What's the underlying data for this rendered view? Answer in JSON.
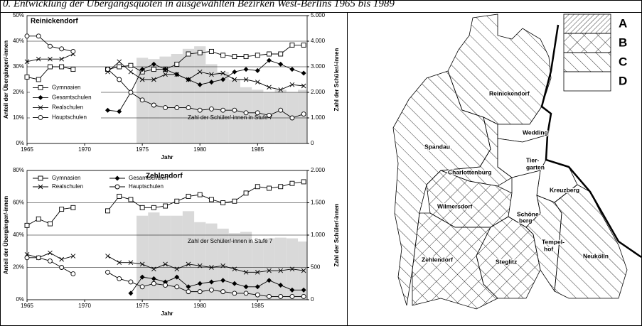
{
  "figure_title": "0. Entwicklung der Übergangsquoten in ausgewählten Bezirken West-Berlins 1965 bis 1989",
  "chart_data": [
    {
      "type": "line",
      "title": "Reinickendorf",
      "title_position": "left",
      "legend": "center-left",
      "xlabel": "Jahr",
      "ylabel": "Anteil der Übergänger/-innen",
      "y2label": "Zahl der Schüler/-innen",
      "x": [
        1965,
        1966,
        1967,
        1968,
        1969,
        1970,
        1971,
        1972,
        1973,
        1974,
        1975,
        1976,
        1977,
        1978,
        1979,
        1980,
        1981,
        1982,
        1983,
        1984,
        1985,
        1986,
        1987,
        1988,
        1989
      ],
      "xlim": [
        1965,
        1989.3
      ],
      "xticks": [
        1965,
        1970,
        1975,
        1980,
        1985
      ],
      "ylim": [
        0,
        50
      ],
      "yticks": [
        {
          "value": 0,
          "label": "0%"
        },
        {
          "value": 10,
          "label": "10%"
        },
        {
          "value": 20,
          "label": "20%"
        },
        {
          "value": 30,
          "label": "30%"
        },
        {
          "value": 40,
          "label": "40%"
        },
        {
          "value": 50,
          "label": "50%"
        }
      ],
      "y2lim": [
        0,
        5000
      ],
      "y2ticks": [
        0,
        {
          "value": 1000,
          "label": "1.000"
        },
        {
          "value": 2000,
          "label": "2.000"
        },
        {
          "value": 3000,
          "label": "3.000"
        },
        {
          "value": 4000,
          "label": "4.000"
        },
        {
          "value": 5000,
          "label": "5.000"
        }
      ],
      "grid": true,
      "series": [
        {
          "name": "Zahl der Schüler/-innen in Stufe 7",
          "type": "area",
          "axis": "y2",
          "color": "#d9d9d9",
          "values": [
            null,
            null,
            null,
            null,
            null,
            null,
            null,
            null,
            null,
            null,
            3350,
            3300,
            3400,
            3500,
            3700,
            3800,
            3100,
            2800,
            2500,
            2200,
            2100,
            2000,
            2100,
            2000,
            2100
          ]
        },
        {
          "name": "Gymnasien",
          "marker": "square",
          "color": "#000000",
          "values": [
            26,
            25,
            30,
            30,
            29,
            null,
            null,
            29,
            30,
            30.5,
            28,
            29,
            29,
            31,
            35,
            35.5,
            36,
            34.5,
            34,
            34,
            34.5,
            35,
            35,
            38.5,
            38.5
          ]
        },
        {
          "name": "Gesamtschulen",
          "marker": "diamond",
          "color": "#000000",
          "values": [
            null,
            null,
            null,
            null,
            null,
            null,
            null,
            13,
            12.5,
            20,
            29,
            31,
            29,
            27,
            25,
            23,
            24,
            25,
            28,
            29,
            28.5,
            32.5,
            31,
            29,
            27.5
          ]
        },
        {
          "name": "Realschulen",
          "marker": "x",
          "color": "#000000",
          "values": [
            32,
            33,
            33,
            33,
            35,
            null,
            null,
            28,
            32,
            28,
            25,
            25,
            27,
            27,
            25,
            28,
            27,
            27.5,
            25,
            25,
            24,
            22,
            21,
            23,
            22.5
          ]
        },
        {
          "name": "Hauptschulen",
          "marker": "circle",
          "color": "#000000",
          "values": [
            42,
            42,
            38,
            37,
            36,
            null,
            null,
            29,
            25,
            20,
            17,
            15,
            14,
            14,
            14,
            13,
            13.5,
            13,
            13,
            12,
            12,
            11,
            13,
            10,
            11.5
          ]
        }
      ]
    },
    {
      "type": "line",
      "title": "Zehlendorf",
      "title_position": "center",
      "legend": "top-left",
      "xlabel": "Jahr",
      "ylabel": "Anteil der Übergänger/-innen",
      "y2label": "Zahl der Schüler/-innen",
      "x": [
        1965,
        1966,
        1967,
        1968,
        1969,
        1970,
        1971,
        1972,
        1973,
        1974,
        1975,
        1976,
        1977,
        1978,
        1979,
        1980,
        1981,
        1982,
        1983,
        1984,
        1985,
        1986,
        1987,
        1988,
        1989
      ],
      "xlim": [
        1965,
        1989.3
      ],
      "xticks": [
        1965,
        1970,
        1975,
        1980,
        1985
      ],
      "ylim": [
        0,
        80
      ],
      "yticks": [
        {
          "value": 0,
          "label": "0%"
        },
        {
          "value": 20,
          "label": "20%"
        },
        {
          "value": 40,
          "label": "40%"
        },
        {
          "value": 60,
          "label": "60%"
        },
        {
          "value": 80,
          "label": "80%"
        }
      ],
      "y2lim": [
        0,
        2000
      ],
      "y2ticks": [
        0,
        500,
        {
          "value": 1000,
          "label": "1.000"
        },
        {
          "value": 1500,
          "label": "1.500"
        },
        {
          "value": 2000,
          "label": "2.000"
        }
      ],
      "grid": true,
      "series": [
        {
          "name": "Zahl der Schüler/-innen in Stufe 7",
          "type": "area",
          "axis": "y2",
          "color": "#d9d9d9",
          "values": [
            null,
            null,
            null,
            null,
            null,
            null,
            null,
            null,
            null,
            null,
            1300,
            1350,
            1300,
            1300,
            1370,
            1200,
            1180,
            1100,
            1030,
            1050,
            900,
            950,
            960,
            950,
            900
          ]
        },
        {
          "name": "Gymnasien",
          "marker": "square",
          "color": "#000000",
          "values": [
            46,
            50,
            47,
            56,
            57,
            null,
            null,
            55,
            64,
            62,
            57,
            57,
            58,
            61,
            64,
            65,
            62,
            60,
            61,
            66,
            70,
            69,
            70,
            72,
            73
          ]
        },
        {
          "name": "Gesamtschulen",
          "marker": "diamond",
          "color": "#000000",
          "values": [
            null,
            null,
            null,
            null,
            null,
            null,
            null,
            null,
            null,
            4,
            14,
            13,
            11,
            14,
            8,
            10,
            11,
            12,
            10,
            8,
            8,
            12,
            9,
            6,
            6
          ]
        },
        {
          "name": "Realschulen",
          "marker": "x",
          "color": "#000000",
          "values": [
            28,
            26,
            29,
            25,
            27,
            null,
            null,
            27,
            23,
            23,
            22,
            19,
            22,
            19,
            22,
            21,
            20,
            21,
            19,
            17,
            17,
            18,
            18,
            19,
            18
          ]
        },
        {
          "name": "Hauptschulen",
          "marker": "circle",
          "color": "#000000",
          "values": [
            26,
            26,
            24,
            20,
            16,
            null,
            null,
            17,
            13,
            11,
            8,
            10,
            9,
            8,
            5,
            5,
            6,
            5,
            4,
            4,
            3,
            2,
            2,
            2,
            2
          ]
        }
      ]
    }
  ],
  "map": {
    "legend": [
      "A",
      "B",
      "C",
      "D"
    ],
    "regions": [
      {
        "label": [
          "Spandau"
        ],
        "category": "C"
      },
      {
        "label": [
          "Reinickendorf"
        ],
        "category": "C"
      },
      {
        "label": [
          "Charlottenburg"
        ],
        "category": "C"
      },
      {
        "label": [
          "Wedding"
        ],
        "category": "D"
      },
      {
        "label": [
          "Tier-",
          "garten"
        ],
        "category": "D"
      },
      {
        "label": [
          "Kreuzberg"
        ],
        "category": "D"
      },
      {
        "label": [
          "Wilmersdorf"
        ],
        "category": "B"
      },
      {
        "label": [
          "Schöne-",
          "berg"
        ],
        "category": "D"
      },
      {
        "label": [
          "Tempel-",
          "hof"
        ],
        "category": "C"
      },
      {
        "label": [
          "Neukölln"
        ],
        "category": "C"
      },
      {
        "label": [
          "Steglitz"
        ],
        "category": "B"
      },
      {
        "label": [
          "Zehlendorf"
        ],
        "category": "B"
      }
    ]
  }
}
